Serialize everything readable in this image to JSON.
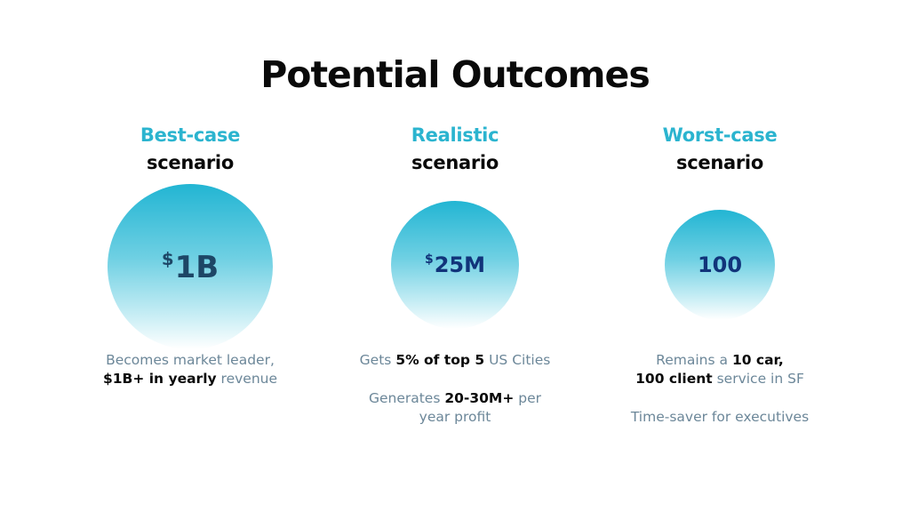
{
  "slide": {
    "title": "Potential Outcomes"
  },
  "columns": [
    {
      "heading_accent": "Best-case",
      "heading_sub": "scenario",
      "circle_prefix": "$",
      "circle_value": "1B",
      "desc_lines": [
        {
          "p1": "Becomes market leader,",
          "b1": "",
          "p2": "",
          "b2": "",
          "p3": ""
        },
        {
          "p1": "",
          "b1": "$1B+ in yearly",
          "p2": " revenue",
          "b2": "",
          "p3": ""
        }
      ]
    },
    {
      "heading_accent": "Realistic",
      "heading_sub": "scenario",
      "circle_prefix": "$",
      "circle_value": "25M",
      "desc_lines": [
        {
          "p1": "Gets ",
          "b1": "5% of top 5",
          "p2": " US Cities",
          "b2": "",
          "p3": ""
        }
      ],
      "desc2_lines": [
        {
          "p1": "Generates ",
          "b1": "20-30M+",
          "p2": " per"
        },
        {
          "p1": "year profit",
          "b1": "",
          "p2": ""
        }
      ]
    },
    {
      "heading_accent": "Worst-case",
      "heading_sub": "scenario",
      "circle_prefix": "",
      "circle_value": "100",
      "desc_lines": [
        {
          "p1": "Remains a ",
          "b1": "10 car,",
          "p2": "",
          "b2": "",
          "p3": ""
        },
        {
          "p1": "",
          "b1": "100 client",
          "p2": " service in SF",
          "b2": "",
          "p3": ""
        }
      ],
      "desc2": "Time-saver for executives"
    }
  ],
  "colors": {
    "accent": "#2bb4cf",
    "circle_top": "#22b5d3",
    "circle_bottom": "#ffffff",
    "desc_text": "#6c8799",
    "dark_text": "#0a0a0a"
  }
}
